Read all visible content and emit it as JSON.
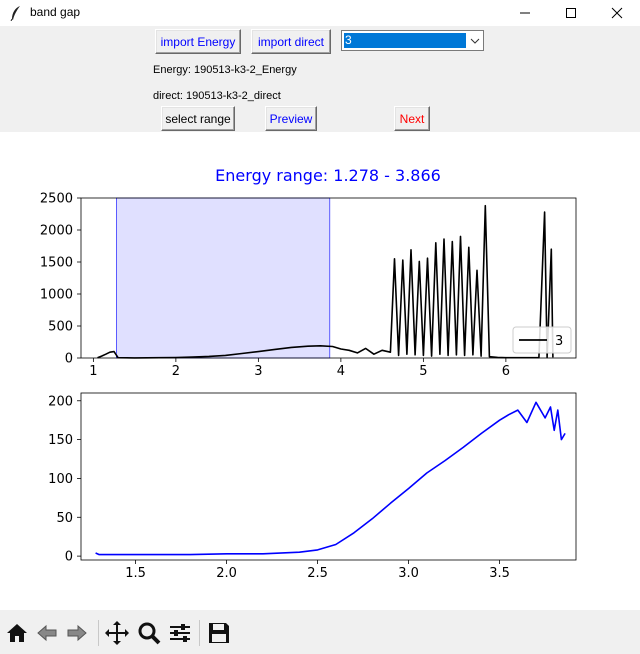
{
  "window": {
    "title": "band gap",
    "icons": {
      "app": "feather-icon",
      "minimize": "minimize-icon",
      "maximize": "maximize-icon",
      "close": "close-icon"
    }
  },
  "controls": {
    "import_energy_label": "import Energy",
    "import_direct_label": "import direct",
    "selector_value": "3",
    "energy_file_text": "Energy: 190513-k3-2_Energy",
    "direct_file_text": "direct: 190513-k3-2_direct",
    "select_range_label": "select range",
    "preview_label": "Preview",
    "next_label": "Next",
    "colors": {
      "blue_text": "#0000ff",
      "red_text": "#ff0000"
    }
  },
  "chart_data": [
    {
      "type": "line",
      "title": "Energy range: 1.278 - 3.866",
      "title_color": "#0000ff",
      "xlabel": "",
      "ylabel": "",
      "xlim": [
        0.85,
        6.85
      ],
      "ylim": [
        0,
        2500
      ],
      "xticks": [
        "1",
        "2",
        "3",
        "4",
        "5",
        "6"
      ],
      "yticks": [
        "0",
        "500",
        "1000",
        "1500",
        "2000",
        "2500"
      ],
      "highlight_span": {
        "x_from": 1.278,
        "x_to": 3.866,
        "color": "#e0e0ff"
      },
      "legend": {
        "placement": "lower-right",
        "entries": [
          "3"
        ]
      },
      "series": [
        {
          "name": "3",
          "color": "#000000",
          "x": [
            1.05,
            1.1,
            1.15,
            1.2,
            1.25,
            1.3,
            1.5,
            1.8,
            2.0,
            2.2,
            2.4,
            2.6,
            2.8,
            3.0,
            3.2,
            3.4,
            3.6,
            3.75,
            3.9,
            4.0,
            4.1,
            4.2,
            4.3,
            4.4,
            4.5,
            4.6,
            4.65,
            4.7,
            4.75,
            4.8,
            4.85,
            4.9,
            4.95,
            5.0,
            5.05,
            5.1,
            5.15,
            5.2,
            5.25,
            5.3,
            5.35,
            5.4,
            5.45,
            5.5,
            5.55,
            5.6,
            5.65,
            5.7,
            5.75,
            5.8,
            5.9,
            6.0,
            6.1,
            6.2,
            6.3,
            6.4,
            6.47,
            6.5,
            6.55,
            6.57
          ],
          "y": [
            5,
            30,
            60,
            90,
            100,
            5,
            2,
            4,
            8,
            15,
            25,
            40,
            70,
            100,
            135,
            165,
            185,
            190,
            180,
            140,
            120,
            80,
            150,
            60,
            120,
            90,
            1550,
            40,
            1530,
            60,
            1690,
            50,
            1510,
            40,
            1560,
            30,
            1800,
            60,
            1860,
            40,
            1820,
            50,
            1900,
            40,
            1730,
            50,
            1370,
            30,
            2380,
            20,
            10,
            5,
            5,
            5,
            5,
            5,
            2280,
            10,
            1700,
            10
          ]
        }
      ]
    },
    {
      "type": "line",
      "title": "",
      "xlabel": "",
      "ylabel": "",
      "xlim": [
        1.2,
        3.92
      ],
      "ylim": [
        -5,
        210
      ],
      "xticks": [
        "1.5",
        "2.0",
        "2.5",
        "3.0",
        "3.5"
      ],
      "yticks": [
        "0",
        "50",
        "100",
        "150",
        "200"
      ],
      "series": [
        {
          "name": "",
          "color": "#0000ff",
          "x": [
            1.28,
            1.3,
            1.5,
            1.8,
            2.0,
            2.2,
            2.4,
            2.5,
            2.6,
            2.7,
            2.8,
            2.9,
            3.0,
            3.1,
            3.2,
            3.3,
            3.4,
            3.5,
            3.55,
            3.6,
            3.65,
            3.7,
            3.75,
            3.78,
            3.8,
            3.82,
            3.84,
            3.86
          ],
          "y": [
            4,
            2,
            2,
            2,
            3,
            3,
            5,
            8,
            15,
            30,
            48,
            68,
            87,
            107,
            123,
            140,
            158,
            175,
            182,
            188,
            172,
            198,
            178,
            192,
            162,
            188,
            150,
            158
          ]
        }
      ]
    }
  ],
  "toolbar": {
    "items": [
      "home-icon",
      "back-icon",
      "forward-icon",
      "pan-icon",
      "zoom-icon",
      "configure-subplots-icon",
      "save-icon"
    ]
  }
}
